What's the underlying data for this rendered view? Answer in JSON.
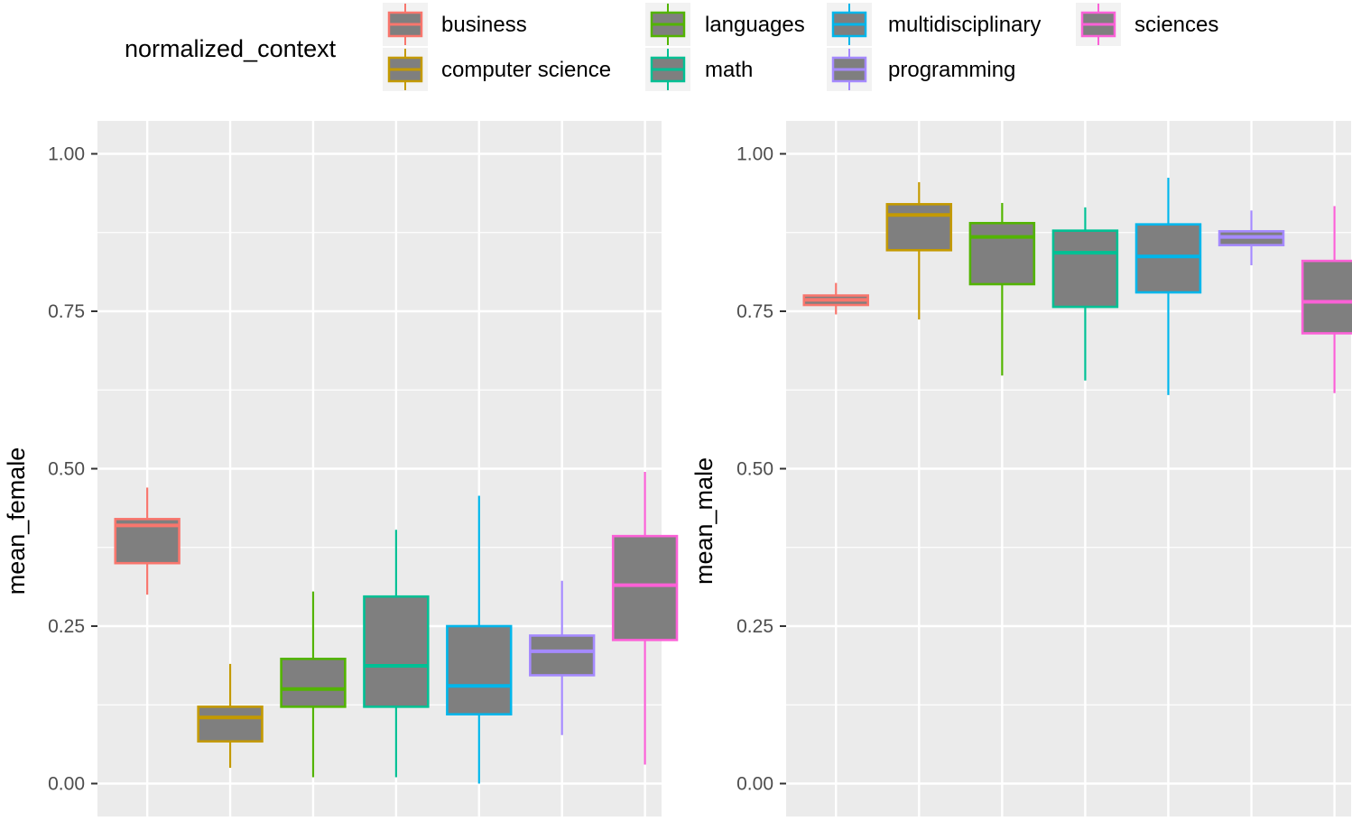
{
  "legend": {
    "title": "normalized_context",
    "entries": [
      {
        "label": "business",
        "color": "#F8766D"
      },
      {
        "label": "computer science",
        "color": "#C49A00"
      },
      {
        "label": "languages",
        "color": "#53B400"
      },
      {
        "label": "math",
        "color": "#00C094"
      },
      {
        "label": "multidisciplinary",
        "color": "#00B6EB"
      },
      {
        "label": "programming",
        "color": "#A58AFF"
      },
      {
        "label": "sciences",
        "color": "#FB61D7"
      }
    ]
  },
  "chart_data": [
    {
      "type": "boxplot",
      "ylabel": "mean_female",
      "xlabel": "",
      "ylim": [
        0,
        1.05
      ],
      "yticks": [
        "0.00",
        "0.25",
        "0.50",
        "0.75",
        "1.00"
      ],
      "box_fill": "#7f7f7f",
      "panel_bg": "#ebebeb",
      "boxes": [
        {
          "group": "business",
          "lower_whisker": 0.3,
          "q1": 0.35,
          "median": 0.41,
          "q3": 0.42,
          "upper_whisker": 0.47
        },
        {
          "group": "computer science",
          "lower_whisker": 0.025,
          "q1": 0.067,
          "median": 0.105,
          "q3": 0.122,
          "upper_whisker": 0.19
        },
        {
          "group": "languages",
          "lower_whisker": 0.01,
          "q1": 0.122,
          "median": 0.15,
          "q3": 0.198,
          "upper_whisker": 0.305
        },
        {
          "group": "math",
          "lower_whisker": 0.01,
          "q1": 0.122,
          "median": 0.187,
          "q3": 0.297,
          "upper_whisker": 0.403
        },
        {
          "group": "multidisciplinary",
          "lower_whisker": 0.0,
          "q1": 0.11,
          "median": 0.155,
          "q3": 0.25,
          "upper_whisker": 0.457
        },
        {
          "group": "programming",
          "lower_whisker": 0.077,
          "q1": 0.172,
          "median": 0.21,
          "q3": 0.235,
          "upper_whisker": 0.322
        },
        {
          "group": "sciences",
          "lower_whisker": 0.03,
          "q1": 0.228,
          "median": 0.315,
          "q3": 0.393,
          "upper_whisker": 0.495
        }
      ]
    },
    {
      "type": "boxplot",
      "ylabel": "mean_male",
      "xlabel": "",
      "ylim": [
        0,
        1.05
      ],
      "yticks": [
        "0.00",
        "0.25",
        "0.50",
        "0.75",
        "1.00"
      ],
      "box_fill": "#7f7f7f",
      "panel_bg": "#ebebeb",
      "boxes": [
        {
          "group": "business",
          "lower_whisker": 0.745,
          "q1": 0.76,
          "median": 0.768,
          "q3": 0.775,
          "upper_whisker": 0.795
        },
        {
          "group": "computer science",
          "lower_whisker": 0.737,
          "q1": 0.847,
          "median": 0.903,
          "q3": 0.92,
          "upper_whisker": 0.955
        },
        {
          "group": "languages",
          "lower_whisker": 0.648,
          "q1": 0.793,
          "median": 0.868,
          "q3": 0.89,
          "upper_whisker": 0.922
        },
        {
          "group": "math",
          "lower_whisker": 0.64,
          "q1": 0.757,
          "median": 0.843,
          "q3": 0.878,
          "upper_whisker": 0.915
        },
        {
          "group": "multidisciplinary",
          "lower_whisker": 0.617,
          "q1": 0.78,
          "median": 0.837,
          "q3": 0.888,
          "upper_whisker": 0.962
        },
        {
          "group": "programming",
          "lower_whisker": 0.823,
          "q1": 0.855,
          "median": 0.868,
          "q3": 0.877,
          "upper_whisker": 0.91
        },
        {
          "group": "sciences",
          "lower_whisker": 0.62,
          "q1": 0.715,
          "median": 0.765,
          "q3": 0.83,
          "upper_whisker": 0.917
        }
      ]
    }
  ]
}
